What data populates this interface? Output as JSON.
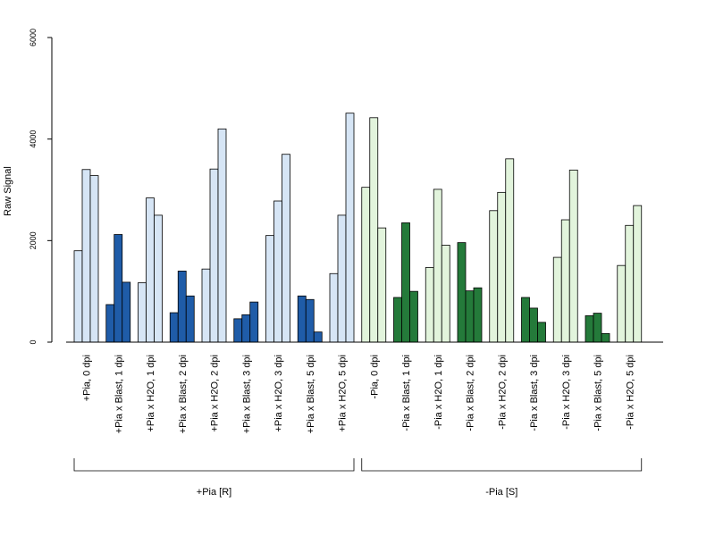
{
  "chart_data": {
    "type": "bar",
    "ylabel": "Raw Signal",
    "ylim": [
      0,
      6000
    ],
    "yticks": [
      0,
      2000,
      4000,
      6000
    ],
    "grid": false,
    "colors": {
      "light_blue": "#d6e5f5",
      "dark_blue": "#1f5ca8",
      "light_green": "#e2f4dc",
      "dark_green": "#247a3a"
    },
    "categories": [
      {
        "label": "+Pia, 0 dpi",
        "color": "light_blue",
        "values": [
          1800,
          3400,
          3280
        ]
      },
      {
        "label": "+Pia x Blast, 1 dpi",
        "color": "dark_blue",
        "values": [
          740,
          2120,
          1180
        ]
      },
      {
        "label": "+Pia x H2O, 1 dpi",
        "color": "light_blue",
        "values": [
          1170,
          2840,
          2500
        ]
      },
      {
        "label": "+Pia x Blast, 2 dpi",
        "color": "dark_blue",
        "values": [
          580,
          1400,
          910
        ]
      },
      {
        "label": "+Pia x H2O, 2 dpi",
        "color": "light_blue",
        "values": [
          1440,
          3410,
          4200
        ]
      },
      {
        "label": "+Pia x Blast, 3 dpi",
        "color": "dark_blue",
        "values": [
          460,
          540,
          790
        ]
      },
      {
        "label": "+Pia x H2O, 3 dpi",
        "color": "light_blue",
        "values": [
          2100,
          2780,
          3700
        ]
      },
      {
        "label": "+Pia x Blast, 5 dpi",
        "color": "dark_blue",
        "values": [
          910,
          840,
          200
        ]
      },
      {
        "label": "+Pia x H2O, 5 dpi",
        "color": "light_blue",
        "values": [
          1350,
          2500,
          4510
        ]
      },
      {
        "label": "-Pia, 0 dpi",
        "color": "light_green",
        "values": [
          3050,
          4420,
          2250
        ]
      },
      {
        "label": "-Pia x Blast, 1 dpi",
        "color": "dark_green",
        "values": [
          880,
          2350,
          1000
        ]
      },
      {
        "label": "-Pia x H2O, 1 dpi",
        "color": "light_green",
        "values": [
          1470,
          3010,
          1910
        ]
      },
      {
        "label": "-Pia x Blast, 2 dpi",
        "color": "dark_green",
        "values": [
          1960,
          1010,
          1070
        ]
      },
      {
        "label": "-Pia x H2O, 2 dpi",
        "color": "light_green",
        "values": [
          2590,
          2950,
          3610
        ]
      },
      {
        "label": "-Pia x Blast, 3 dpi",
        "color": "dark_green",
        "values": [
          880,
          670,
          390
        ]
      },
      {
        "label": "-Pia x H2O, 3 dpi",
        "color": "light_green",
        "values": [
          1670,
          2410,
          3390
        ]
      },
      {
        "label": "-Pia x Blast, 5 dpi",
        "color": "dark_green",
        "values": [
          520,
          570,
          170
        ]
      },
      {
        "label": "-Pia x H2O, 5 dpi",
        "color": "light_green",
        "values": [
          1510,
          2300,
          2690
        ]
      }
    ],
    "groups": [
      {
        "label": "+Pia [R]",
        "first": 0,
        "last": 8
      },
      {
        "label": "-Pia [S]",
        "first": 9,
        "last": 17
      }
    ]
  }
}
